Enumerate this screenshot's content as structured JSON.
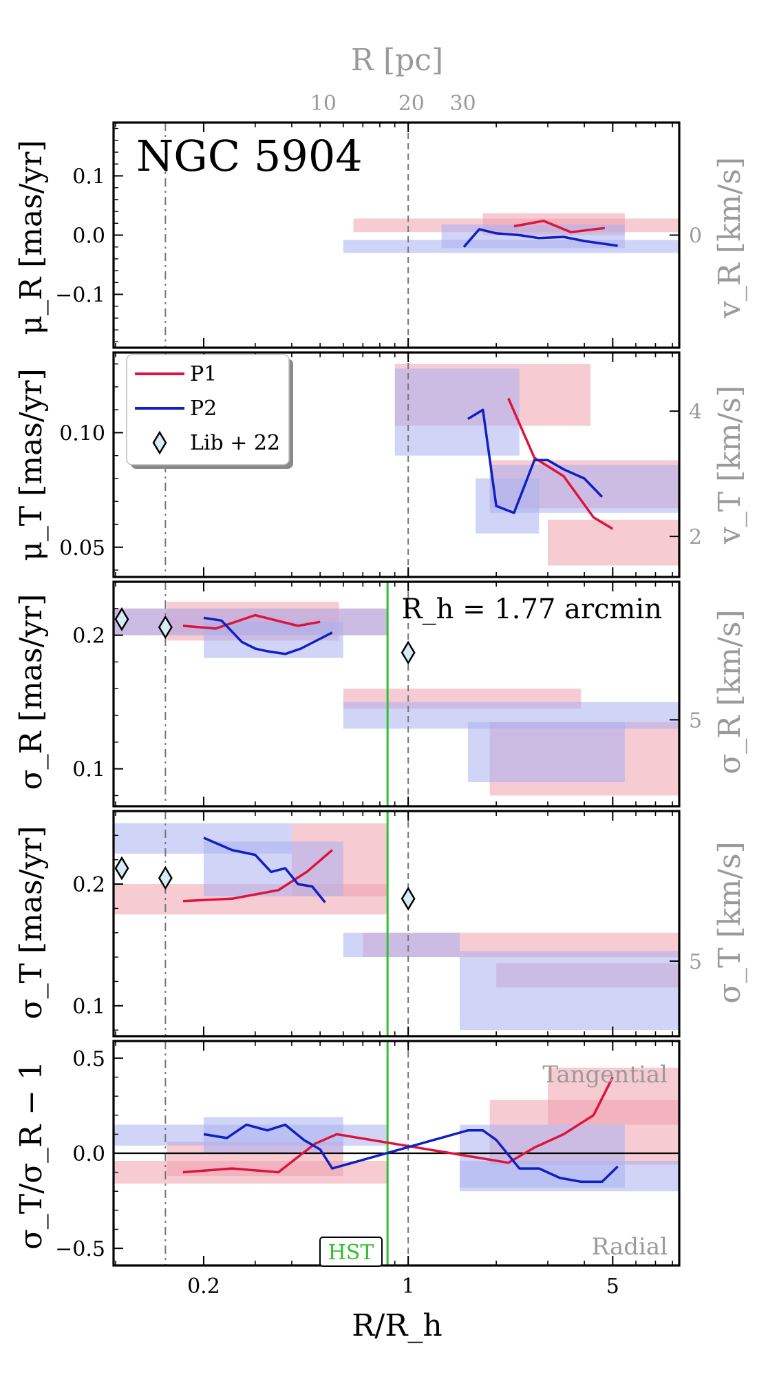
{
  "chart_data": {
    "type": "line",
    "title": "NGC 5904",
    "top_axis": {
      "label": "R [pc]",
      "ticks": [
        10,
        20,
        30
      ]
    },
    "xlabel": "R/R_h",
    "xscale": "log",
    "xlim": [
      0.0984,
      8.44
    ],
    "xticks": [
      {
        "value": 0.2,
        "label": "0.2"
      },
      {
        "value": 1,
        "label": "1"
      },
      {
        "value": 5,
        "label": "5"
      }
    ],
    "pc_per_Rh": 19.5,
    "legend": {
      "location": "upper-left of panel 2",
      "entries": [
        "P1",
        "P2",
        "Lib + 22"
      ]
    },
    "colors": {
      "P1": "#dc143c",
      "P2": "#0f1fc4",
      "band_P1": "#f0a0ad",
      "band_P2": "#aab0f0",
      "hst": "#2ec02e",
      "ref_dashdot": "#777777",
      "ref_dashed": "#777777"
    },
    "reference_lines": [
      {
        "name": "dash-dot",
        "x": 0.148
      },
      {
        "name": "dashed",
        "x": 1.0
      },
      {
        "name": "HST",
        "x": 0.85,
        "panels": [
          2,
          3,
          4
        ],
        "label": "HST"
      }
    ],
    "panels": [
      {
        "ylabel": "μ_R [mas/yr]",
        "right_label": "v_R [km/s]",
        "ylim": [
          -0.19,
          0.19
        ],
        "yticks": [
          0.1,
          0.0,
          -0.1
        ],
        "ytick_labels": [
          "0.1",
          "0.0",
          "−0.1"
        ],
        "right_ticks": [
          {
            "value": 0.0,
            "label": "0"
          }
        ],
        "series": [
          {
            "name": "P1",
            "x": [
              2.3,
              2.9,
              3.6,
              4.7
            ],
            "y": [
              0.015,
              0.024,
              0.005,
              0.012
            ],
            "bands": [
              {
                "x0": 0.65,
                "x1": 8.44,
                "y0": 0.005,
                "y1": 0.028
              },
              {
                "x0": 1.8,
                "x1": 5.5,
                "y0": 0.0,
                "y1": 0.037
              }
            ]
          },
          {
            "name": "P2",
            "x": [
              1.55,
              1.75,
              2.0,
              2.4,
              2.8,
              3.4,
              4.0,
              5.2
            ],
            "y": [
              -0.02,
              0.01,
              0.003,
              0.0,
              -0.005,
              -0.003,
              -0.01,
              -0.018
            ],
            "bands": [
              {
                "x0": 0.6,
                "x1": 8.44,
                "y0": -0.03,
                "y1": -0.008
              },
              {
                "x0": 1.3,
                "x1": 5.5,
                "y0": -0.022,
                "y1": 0.018
              }
            ]
          }
        ],
        "title_text": "NGC 5904"
      },
      {
        "ylabel": "μ_T [mas/yr]",
        "right_label": "v_T [km/s]",
        "ylim": [
          0.037,
          0.135
        ],
        "yticks": [
          0.1,
          0.05
        ],
        "ytick_labels": [
          "0.10",
          "0.05"
        ],
        "right_ticks": [
          {
            "value": 0.1094,
            "label": "4"
          },
          {
            "value": 0.0547,
            "label": "2"
          }
        ],
        "series": [
          {
            "name": "P1",
            "x": [
              2.2,
              2.7,
              3.4,
              4.3,
              5.0
            ],
            "y": [
              0.115,
              0.089,
              0.081,
              0.063,
              0.058
            ],
            "bands": [
              {
                "x0": 0.9,
                "x1": 4.2,
                "y0": 0.103,
                "y1": 0.13
              },
              {
                "x0": 1.9,
                "x1": 8.44,
                "y0": 0.067,
                "y1": 0.088
              },
              {
                "x0": 3.0,
                "x1": 8.44,
                "y0": 0.042,
                "y1": 0.062
              }
            ]
          },
          {
            "name": "P2",
            "x": [
              1.6,
              1.8,
              2.0,
              2.3,
              2.7,
              3.0,
              3.4,
              4.0,
              4.6
            ],
            "y": [
              0.106,
              0.11,
              0.068,
              0.065,
              0.088,
              0.088,
              0.084,
              0.08,
              0.072
            ],
            "bands": [
              {
                "x0": 0.9,
                "x1": 2.4,
                "y0": 0.09,
                "y1": 0.128
              },
              {
                "x0": 1.9,
                "x1": 8.44,
                "y0": 0.065,
                "y1": 0.086
              },
              {
                "x0": 1.7,
                "x1": 2.8,
                "y0": 0.056,
                "y1": 0.08
              }
            ]
          }
        ]
      },
      {
        "ylabel": "σ_R [mas/yr]",
        "right_label": "σ_R [km/s]",
        "ylim": [
          0.072,
          0.24
        ],
        "yticks": [
          0.2,
          0.1
        ],
        "ytick_labels": [
          "0.2",
          "0.1"
        ],
        "right_ticks": [
          {
            "value": 0.1367,
            "label": "5"
          }
        ],
        "annotation": "R_h = 1.77 arcmin",
        "series": [
          {
            "name": "P1",
            "x": [
              0.17,
              0.22,
              0.3,
              0.42,
              0.5
            ],
            "y": [
              0.207,
              0.205,
              0.215,
              0.207,
              0.21
            ],
            "bands": [
              {
                "x0": 0.0984,
                "x1": 0.85,
                "y0": 0.2,
                "y1": 0.22
              },
              {
                "x0": 0.15,
                "x1": 0.58,
                "y0": 0.196,
                "y1": 0.225
              },
              {
                "x0": 0.6,
                "x1": 3.9,
                "y0": 0.145,
                "y1": 0.16
              },
              {
                "x0": 1.9,
                "x1": 8.44,
                "y0": 0.08,
                "y1": 0.135
              }
            ]
          },
          {
            "name": "P2",
            "x": [
              0.2,
              0.23,
              0.27,
              0.3,
              0.33,
              0.38,
              0.43,
              0.55
            ],
            "y": [
              0.213,
              0.211,
              0.195,
              0.19,
              0.188,
              0.186,
              0.19,
              0.202
            ],
            "bands": [
              {
                "x0": 0.0984,
                "x1": 0.85,
                "y0": 0.2,
                "y1": 0.22
              },
              {
                "x0": 0.2,
                "x1": 0.6,
                "y0": 0.183,
                "y1": 0.21
              },
              {
                "x0": 0.6,
                "x1": 8.44,
                "y0": 0.13,
                "y1": 0.15
              },
              {
                "x0": 1.6,
                "x1": 5.5,
                "y0": 0.09,
                "y1": 0.135
              }
            ]
          }
        ],
        "lib22": {
          "x": [
            0.105,
            0.148,
            1.0
          ],
          "y": [
            0.212,
            0.206,
            0.187
          ]
        }
      },
      {
        "ylabel": "σ_T [mas/yr]",
        "right_label": "σ_T [km/s]",
        "ylim": [
          0.075,
          0.26
        ],
        "yticks": [
          0.2,
          0.1
        ],
        "ytick_labels": [
          "0.2",
          "0.1"
        ],
        "right_ticks": [
          {
            "value": 0.1367,
            "label": "5"
          }
        ],
        "series": [
          {
            "name": "P1",
            "x": [
              0.17,
              0.25,
              0.36,
              0.45,
              0.55
            ],
            "y": [
              0.186,
              0.188,
              0.195,
              0.21,
              0.228
            ],
            "bands": [
              {
                "x0": 0.0984,
                "x1": 0.85,
                "y0": 0.175,
                "y1": 0.2
              },
              {
                "x0": 0.4,
                "x1": 0.85,
                "y0": 0.19,
                "y1": 0.25
              },
              {
                "x0": 0.7,
                "x1": 8.44,
                "y0": 0.14,
                "y1": 0.16
              },
              {
                "x0": 2.0,
                "x1": 8.44,
                "y0": 0.115,
                "y1": 0.135
              }
            ]
          },
          {
            "name": "P2",
            "x": [
              0.2,
              0.25,
              0.3,
              0.34,
              0.38,
              0.42,
              0.47,
              0.52
            ],
            "y": [
              0.238,
              0.228,
              0.224,
              0.21,
              0.213,
              0.2,
              0.198,
              0.185
            ],
            "bands": [
              {
                "x0": 0.0984,
                "x1": 0.4,
                "y0": 0.225,
                "y1": 0.25
              },
              {
                "x0": 0.2,
                "x1": 0.6,
                "y0": 0.19,
                "y1": 0.235
              },
              {
                "x0": 0.6,
                "x1": 1.5,
                "y0": 0.14,
                "y1": 0.16
              },
              {
                "x0": 1.5,
                "x1": 8.44,
                "y0": 0.08,
                "y1": 0.145
              }
            ]
          }
        ],
        "lib22": {
          "x": [
            0.105,
            0.148,
            1.0
          ],
          "y": [
            0.213,
            0.205,
            0.188
          ]
        }
      },
      {
        "ylabel": "σ_T/σ_R − 1",
        "right_label": "",
        "ylim": [
          -0.59,
          0.59
        ],
        "yticks": [
          0.5,
          0.0,
          -0.5
        ],
        "ytick_labels": [
          "0.5",
          "0.0",
          "−0.5"
        ],
        "right_ticks": [],
        "annotations_text": {
          "top": "Tangential",
          "bottom": "Radial"
        },
        "series": [
          {
            "name": "P1",
            "x": [
              0.17,
              0.25,
              0.36,
              0.48,
              0.57,
              2.2,
              2.7,
              3.4,
              4.3,
              5.0
            ],
            "y": [
              -0.1,
              -0.08,
              -0.1,
              0.05,
              0.1,
              -0.05,
              0.03,
              0.1,
              0.2,
              0.4
            ],
            "bands": [
              {
                "x0": 0.0984,
                "x1": 0.85,
                "y0": -0.16,
                "y1": -0.04
              },
              {
                "x0": 0.15,
                "x1": 0.6,
                "y0": -0.12,
                "y1": 0.06
              },
              {
                "x0": 1.9,
                "x1": 8.44,
                "y0": -0.06,
                "y1": 0.28
              },
              {
                "x0": 3.0,
                "x1": 8.44,
                "y0": 0.15,
                "y1": 0.45
              }
            ]
          },
          {
            "name": "P2",
            "x": [
              0.2,
              0.24,
              0.28,
              0.33,
              0.38,
              0.44,
              0.5,
              0.55,
              1.6,
              1.8,
              2.0,
              2.4,
              2.8,
              3.3,
              3.9,
              4.6,
              5.2
            ],
            "y": [
              0.1,
              0.08,
              0.15,
              0.12,
              0.15,
              0.07,
              0.02,
              -0.08,
              0.12,
              0.12,
              0.07,
              -0.08,
              -0.08,
              -0.13,
              -0.15,
              -0.15,
              -0.07
            ],
            "bands": [
              {
                "x0": 0.0984,
                "x1": 0.85,
                "y0": 0.04,
                "y1": 0.15
              },
              {
                "x0": 0.2,
                "x1": 0.6,
                "y0": 0.0,
                "y1": 0.19
              },
              {
                "x0": 1.5,
                "x1": 8.44,
                "y0": -0.2,
                "y1": -0.04
              },
              {
                "x0": 1.5,
                "x1": 5.5,
                "y0": -0.18,
                "y1": 0.15
              }
            ]
          }
        ]
      }
    ]
  }
}
